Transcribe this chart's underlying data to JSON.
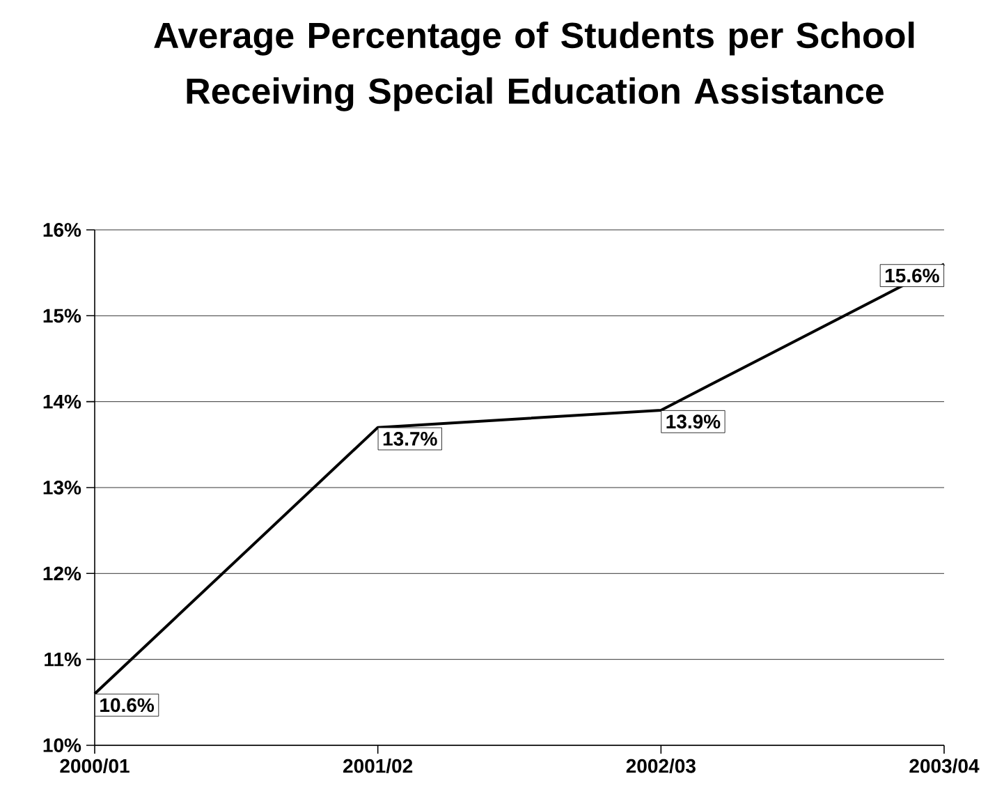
{
  "chart_data": {
    "type": "line",
    "title": "Average Percentage of Students per School Receiving Special Education Assistance",
    "categories": [
      "2000/01",
      "2001/02",
      "2002/03",
      "2003/04"
    ],
    "values": [
      10.6,
      13.7,
      13.9,
      15.6
    ],
    "value_labels": [
      "10.6%",
      "13.7%",
      "13.9%",
      "15.6%"
    ],
    "color": "#000000",
    "ylim": [
      10,
      16
    ],
    "yticks": [
      {
        "value": 10,
        "label": "10%"
      },
      {
        "value": 11,
        "label": "11%"
      },
      {
        "value": 12,
        "label": "12%"
      },
      {
        "value": 13,
        "label": "13%"
      },
      {
        "value": 14,
        "label": "14%"
      },
      {
        "value": 15,
        "label": "15%"
      },
      {
        "value": 16,
        "label": "16%"
      }
    ],
    "grid": "y",
    "marker": "none",
    "line_style": "solid"
  }
}
